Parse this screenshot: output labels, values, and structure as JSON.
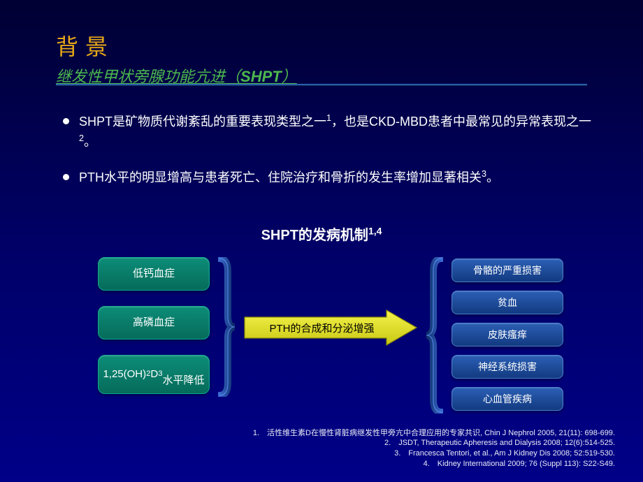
{
  "title": {
    "main": "背景",
    "sub_prefix": "继发性甲状旁腺功能亢进（",
    "sub_shpt": "SHPT",
    "sub_suffix": "）",
    "main_color": "#e6a817",
    "sub_color": "#4db84d",
    "main_fontsize": 32,
    "sub_fontsize": 22
  },
  "bullets": [
    {
      "html": "SHPT是矿物质代谢紊乱的重要表现类型之一<span class='sup'>1</span>，也是CKD-MBD患者中最常见的异常表现之一<span class='sup'>2</span>。"
    },
    {
      "html": "PTH水平的明显增高与患者死亡、住院治疗和骨折的发生率增加显著相关<span class='sup'>3</span>。"
    }
  ],
  "diagram": {
    "title_html": "SHPT的发病机制<span class='sup'>1,4</span>",
    "title_fontsize": 20,
    "left_nodes": [
      {
        "html": "低钙血症"
      },
      {
        "html": "高磷血症"
      },
      {
        "html": "1,25(OH)<span class='sub'>2</span>D<span class='sub'>3</span><br>水平降低"
      }
    ],
    "left_node_style": {
      "fill_top": "#0c8d78",
      "fill_bottom": "#066b5a",
      "border": "#0aa88f",
      "text_color": "#ffffff",
      "fontsize": 15,
      "radius": 10
    },
    "arrow": {
      "label": "PTH的合成和分泌增强",
      "fill_top": "#f4f24a",
      "fill_bottom": "#c9c814",
      "stroke": "#8a8a06",
      "text_color": "#000000",
      "fontsize": 15
    },
    "right_nodes": [
      {
        "html": "骨骼的严重损害"
      },
      {
        "html": "贫血"
      },
      {
        "html": "皮肤瘙痒"
      },
      {
        "html": "神经系统损害"
      },
      {
        "html": "心血管疾病"
      }
    ],
    "right_node_style": {
      "fill_top": "#2b5fb5",
      "fill_bottom": "#123a80",
      "border": "#4b7fd0",
      "text_color": "#ffffff",
      "fontsize": 14,
      "radius": 8
    },
    "bracket_style": {
      "fill_top": "#3a6bd0",
      "fill_bottom": "#0a2a60",
      "stroke": "#6699ff"
    }
  },
  "references": [
    "1.　活性维生素D在慢性肾脏病继发性甲旁亢中合理应用的专家共识, Chin J Nephrol 2005, 21(11): 698-699.",
    "2.　JSDT, Therapeutic Apheresis and Dialysis 2008; 12(6):514-525.",
    "3.　Francesca Tentori, et al., Am J Kidney Dis 2008; 52:519-530.",
    "4.　Kidney International 2009; 76 (Suppl 113): S22-S49."
  ],
  "background": {
    "top": "#000033",
    "mid": "#000066",
    "bottom": "#000088"
  }
}
